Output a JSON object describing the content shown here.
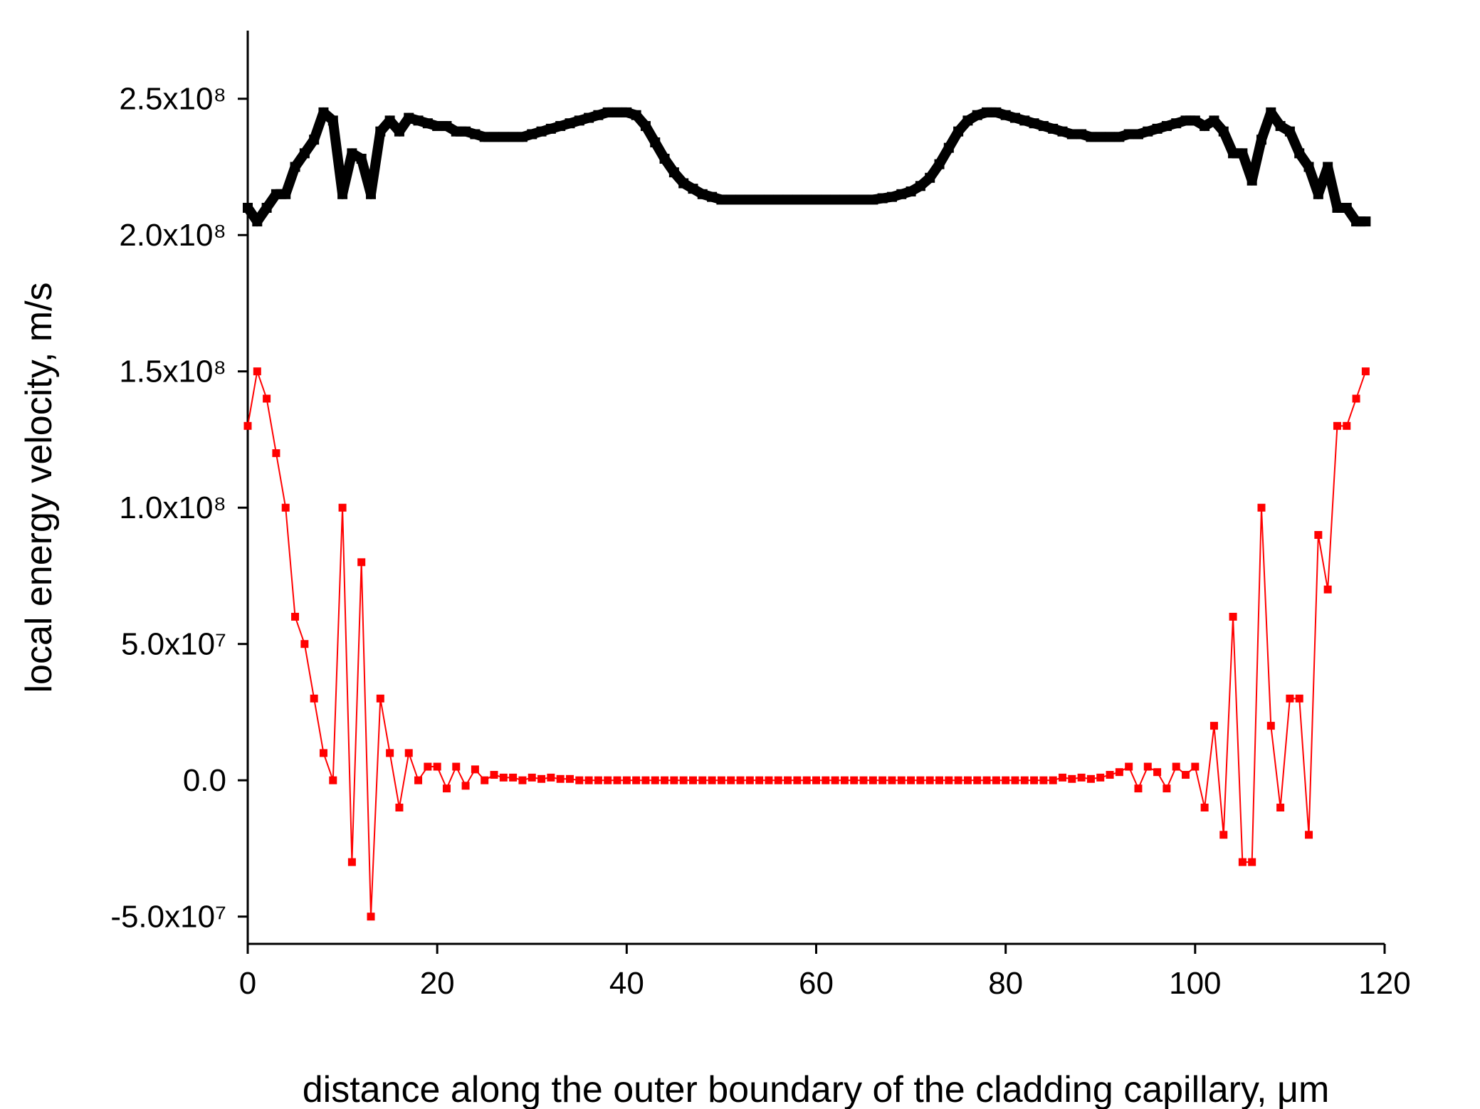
{
  "chart_data": {
    "type": "line",
    "xlabel": "distance along the outer boundary of the cladding capillary, μm",
    "ylabel": "local energy velocity, m/s",
    "xlim": [
      0,
      120
    ],
    "xticks": [
      0,
      20,
      40,
      60,
      80,
      100,
      120
    ],
    "ylim": [
      -60000000,
      275000000
    ],
    "yticks": [
      {
        "value": -50000000,
        "label": "-5.0x10⁷"
      },
      {
        "value": 0,
        "label": "0.0"
      },
      {
        "value": 50000000,
        "label": "5.0x10⁷"
      },
      {
        "value": 100000000,
        "label": "1.0x10⁸"
      },
      {
        "value": 150000000,
        "label": "1.5x10⁸"
      },
      {
        "value": 200000000,
        "label": "2.0x10⁸"
      },
      {
        "value": 250000000,
        "label": "2.5x10⁸"
      }
    ],
    "x": [
      0,
      1,
      2,
      3,
      4,
      5,
      6,
      7,
      8,
      9,
      10,
      11,
      12,
      13,
      14,
      15,
      16,
      17,
      18,
      19,
      20,
      21,
      22,
      23,
      24,
      25,
      26,
      27,
      28,
      29,
      30,
      31,
      32,
      33,
      34,
      35,
      36,
      37,
      38,
      39,
      40,
      41,
      42,
      43,
      44,
      45,
      46,
      47,
      48,
      49,
      50,
      51,
      52,
      53,
      54,
      55,
      56,
      57,
      58,
      59,
      60,
      61,
      62,
      63,
      64,
      65,
      66,
      67,
      68,
      69,
      70,
      71,
      72,
      73,
      74,
      75,
      76,
      77,
      78,
      79,
      80,
      81,
      82,
      83,
      84,
      85,
      86,
      87,
      88,
      89,
      90,
      91,
      92,
      93,
      94,
      95,
      96,
      97,
      98,
      99,
      100,
      101,
      102,
      103,
      104,
      105,
      106,
      107,
      108,
      109,
      110,
      111,
      112,
      113,
      114,
      115,
      116,
      117,
      118
    ],
    "series": [
      {
        "color": "#000000",
        "values": [
          210000000,
          205000000,
          210000000,
          215000000,
          215000000,
          225000000,
          230000000,
          235000000,
          245000000,
          242000000,
          215000000,
          230000000,
          228000000,
          215000000,
          238000000,
          242000000,
          238000000,
          243000000,
          242000000,
          241000000,
          240000000,
          240000000,
          238000000,
          238000000,
          237000000,
          236000000,
          236000000,
          236000000,
          236000000,
          236000000,
          237000000,
          238000000,
          239000000,
          240000000,
          241000000,
          242000000,
          243000000,
          244000000,
          245000000,
          245000000,
          245000000,
          244000000,
          240000000,
          234000000,
          228000000,
          223000000,
          219000000,
          217000000,
          215000000,
          214000000,
          213000000,
          213000000,
          213000000,
          213000000,
          213000000,
          213000000,
          213000000,
          213000000,
          213000000,
          213000000,
          213000000,
          213000000,
          213000000,
          213000000,
          213000000,
          213000000,
          213000000,
          213500000,
          214000000,
          215000000,
          216000000,
          218000000,
          221000000,
          226000000,
          232000000,
          238000000,
          242000000,
          244000000,
          245000000,
          245000000,
          244000000,
          243000000,
          242000000,
          241000000,
          240000000,
          239000000,
          238000000,
          237000000,
          237000000,
          236000000,
          236000000,
          236000000,
          236000000,
          237000000,
          237000000,
          238000000,
          239000000,
          240000000,
          241000000,
          242000000,
          242000000,
          240000000,
          242000000,
          238000000,
          230000000,
          230000000,
          220000000,
          235000000,
          245000000,
          240000000,
          238000000,
          230000000,
          225000000,
          215000000,
          225000000,
          210000000,
          210000000,
          205000000,
          205000000
        ]
      },
      {
        "color": "#ff0000",
        "values": [
          130000000,
          150000000,
          140000000,
          120000000,
          100000000,
          60000000,
          50000000,
          30000000,
          10000000,
          0,
          100000000,
          -30000000,
          80000000,
          -50000000,
          30000000,
          10000000,
          -10000000,
          10000000,
          0,
          5000000,
          5000000,
          -3000000,
          5000000,
          -2000000,
          4000000,
          0,
          2000000,
          1000000,
          1000000,
          0,
          1000000,
          500000,
          1000000,
          500000,
          500000,
          0,
          0,
          0,
          0,
          0,
          0,
          0,
          0,
          0,
          0,
          0,
          0,
          0,
          0,
          0,
          0,
          0,
          0,
          0,
          0,
          0,
          0,
          0,
          0,
          0,
          0,
          0,
          0,
          0,
          0,
          0,
          0,
          0,
          0,
          0,
          0,
          0,
          0,
          0,
          0,
          0,
          0,
          0,
          0,
          0,
          0,
          0,
          0,
          0,
          0,
          0,
          1000000,
          500000,
          1000000,
          500000,
          1000000,
          2000000,
          3000000,
          5000000,
          -3000000,
          5000000,
          3000000,
          -3000000,
          5000000,
          2000000,
          5000000,
          -10000000,
          20000000,
          -20000000,
          60000000,
          -30000000,
          -30000000,
          100000000,
          20000000,
          -10000000,
          30000000,
          30000000,
          -20000000,
          90000000,
          70000000,
          130000000,
          130000000,
          140000000,
          150000000
        ]
      }
    ]
  }
}
